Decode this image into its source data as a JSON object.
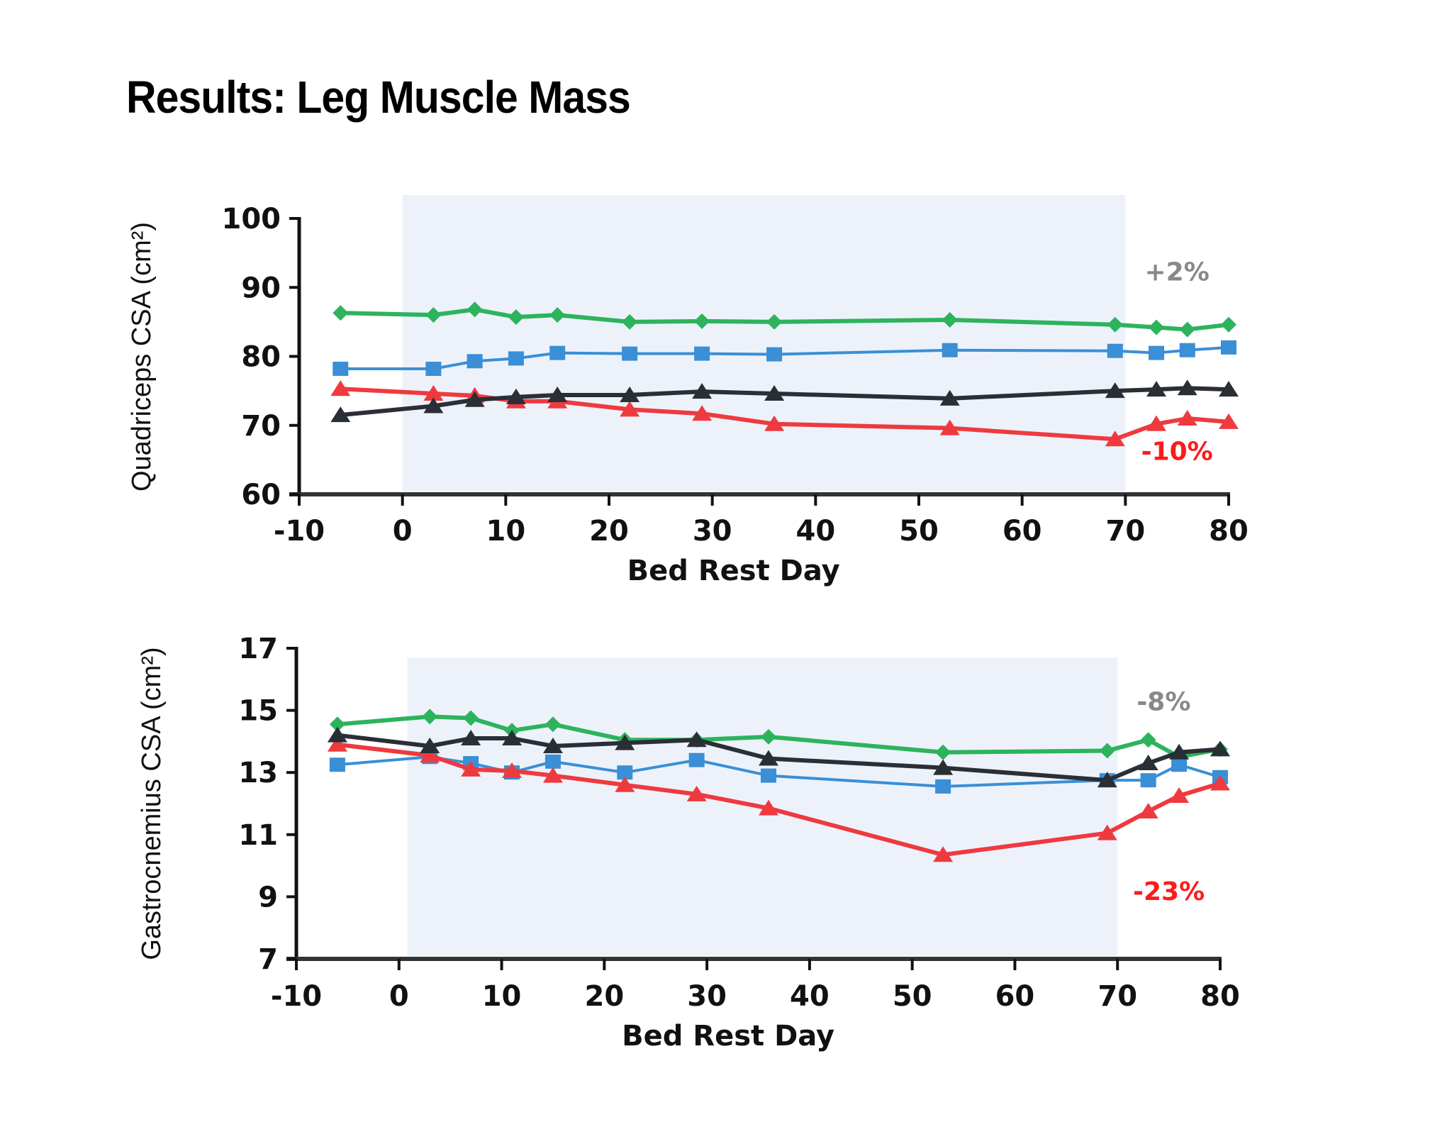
{
  "title": "Results: Leg Muscle Mass",
  "chart_data": [
    {
      "type": "line",
      "title": "",
      "xlabel": "Bed Rest Day",
      "ylabel": "Quadriceps CSA (cm²)",
      "xlim": [
        -10,
        80
      ],
      "ylim": [
        60,
        100
      ],
      "xticks": [
        -10,
        0,
        10,
        20,
        30,
        40,
        50,
        60,
        70,
        80
      ],
      "yticks": [
        60,
        70,
        80,
        90,
        100
      ],
      "grid": false,
      "shaded_region": {
        "x": [
          0,
          70
        ],
        "color": "#edf2fa",
        "label": "bed rest period"
      },
      "x": [
        -6,
        3,
        7,
        11,
        15,
        22,
        29,
        36,
        53,
        69,
        73,
        76,
        80
      ],
      "series": [
        {
          "name": "green-diamond",
          "color": "#2db35d",
          "marker": "diamond",
          "values": [
            86.3,
            86.0,
            86.8,
            85.7,
            86.0,
            85.0,
            85.1,
            85.0,
            85.3,
            84.6,
            84.2,
            83.9,
            84.6
          ]
        },
        {
          "name": "blue-square",
          "color": "#3a8fd6",
          "marker": "square",
          "values": [
            78.2,
            78.2,
            79.3,
            79.7,
            80.5,
            80.4,
            80.4,
            80.3,
            80.9,
            80.8,
            80.5,
            80.9,
            81.3
          ]
        },
        {
          "name": "red-triangle",
          "color": "#ee3a3f",
          "marker": "triangle",
          "values": [
            75.3,
            74.6,
            74.3,
            73.5,
            73.5,
            72.3,
            71.7,
            70.2,
            69.6,
            68.0,
            70.2,
            71.0,
            70.5
          ]
        },
        {
          "name": "black-triangle",
          "color": "#2a2e35",
          "marker": "triangle",
          "values": [
            71.5,
            72.8,
            73.7,
            74.1,
            74.4,
            74.4,
            74.9,
            74.6,
            73.9,
            75.0,
            75.2,
            75.4,
            75.2
          ]
        }
      ],
      "annotations": [
        {
          "text": "+2%",
          "x": 75,
          "y": 91,
          "color": "#888888"
        },
        {
          "text": "-10%",
          "x": 75,
          "y": 65,
          "color": "#ff1a1a"
        }
      ]
    },
    {
      "type": "line",
      "title": "",
      "xlabel": "Bed Rest Day",
      "ylabel": "Gastrocnemius CSA (cm²)",
      "xlim": [
        -10,
        80
      ],
      "ylim": [
        7,
        17
      ],
      "xticks": [
        -10,
        0,
        10,
        20,
        30,
        40,
        50,
        60,
        70,
        80
      ],
      "yticks": [
        7,
        9,
        11,
        13,
        15,
        17
      ],
      "grid": false,
      "shaded_region": {
        "x": [
          0.8,
          70
        ],
        "color": "#edf2fa",
        "label": "bed rest period"
      },
      "x": [
        -6,
        3,
        7,
        11,
        15,
        22,
        29,
        36,
        53,
        69,
        73,
        76,
        80
      ],
      "series": [
        {
          "name": "green-diamond",
          "color": "#2db35d",
          "marker": "diamond",
          "values": [
            14.55,
            14.8,
            14.75,
            14.35,
            14.55,
            14.05,
            14.05,
            14.15,
            13.65,
            13.7,
            14.05,
            13.5,
            13.75
          ]
        },
        {
          "name": "blue-square",
          "color": "#3a8fd6",
          "marker": "square",
          "values": [
            13.25,
            13.5,
            13.3,
            13.0,
            13.35,
            13.0,
            13.4,
            12.9,
            12.55,
            12.75,
            12.75,
            13.25,
            12.85
          ]
        },
        {
          "name": "red-triangle",
          "color": "#ee3a3f",
          "marker": "triangle",
          "values": [
            13.9,
            13.55,
            13.1,
            13.05,
            12.9,
            12.6,
            12.3,
            11.85,
            10.35,
            11.05,
            11.75,
            12.25,
            12.65
          ]
        },
        {
          "name": "black-triangle",
          "color": "#2a2e35",
          "marker": "triangle",
          "values": [
            14.2,
            13.85,
            14.1,
            14.1,
            13.85,
            13.95,
            14.05,
            13.45,
            13.15,
            12.75,
            13.3,
            13.65,
            13.75
          ]
        }
      ],
      "annotations": [
        {
          "text": "-8%",
          "x": 74.5,
          "y": 15.0,
          "color": "#888888"
        },
        {
          "text": "-23%",
          "x": 75,
          "y": 8.9,
          "color": "#ff1a1a"
        }
      ]
    }
  ]
}
